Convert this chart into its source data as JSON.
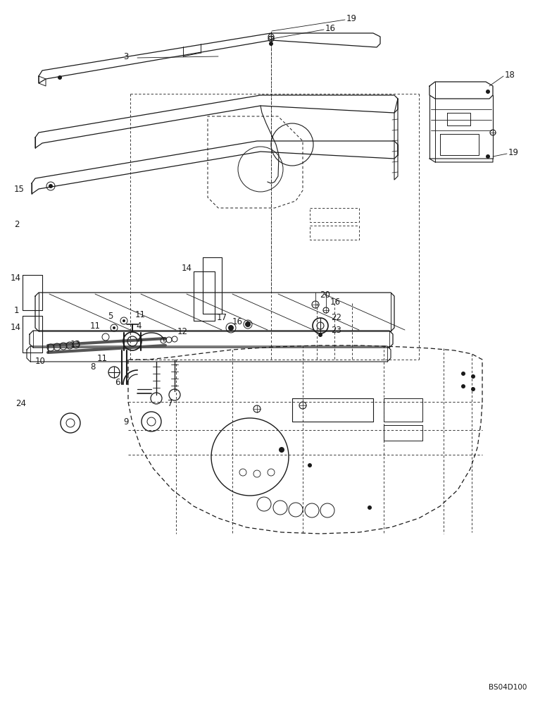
{
  "bg_color": "#ffffff",
  "lc": "#1a1a1a",
  "tc": "#1a1a1a",
  "watermark": "BS04D100"
}
